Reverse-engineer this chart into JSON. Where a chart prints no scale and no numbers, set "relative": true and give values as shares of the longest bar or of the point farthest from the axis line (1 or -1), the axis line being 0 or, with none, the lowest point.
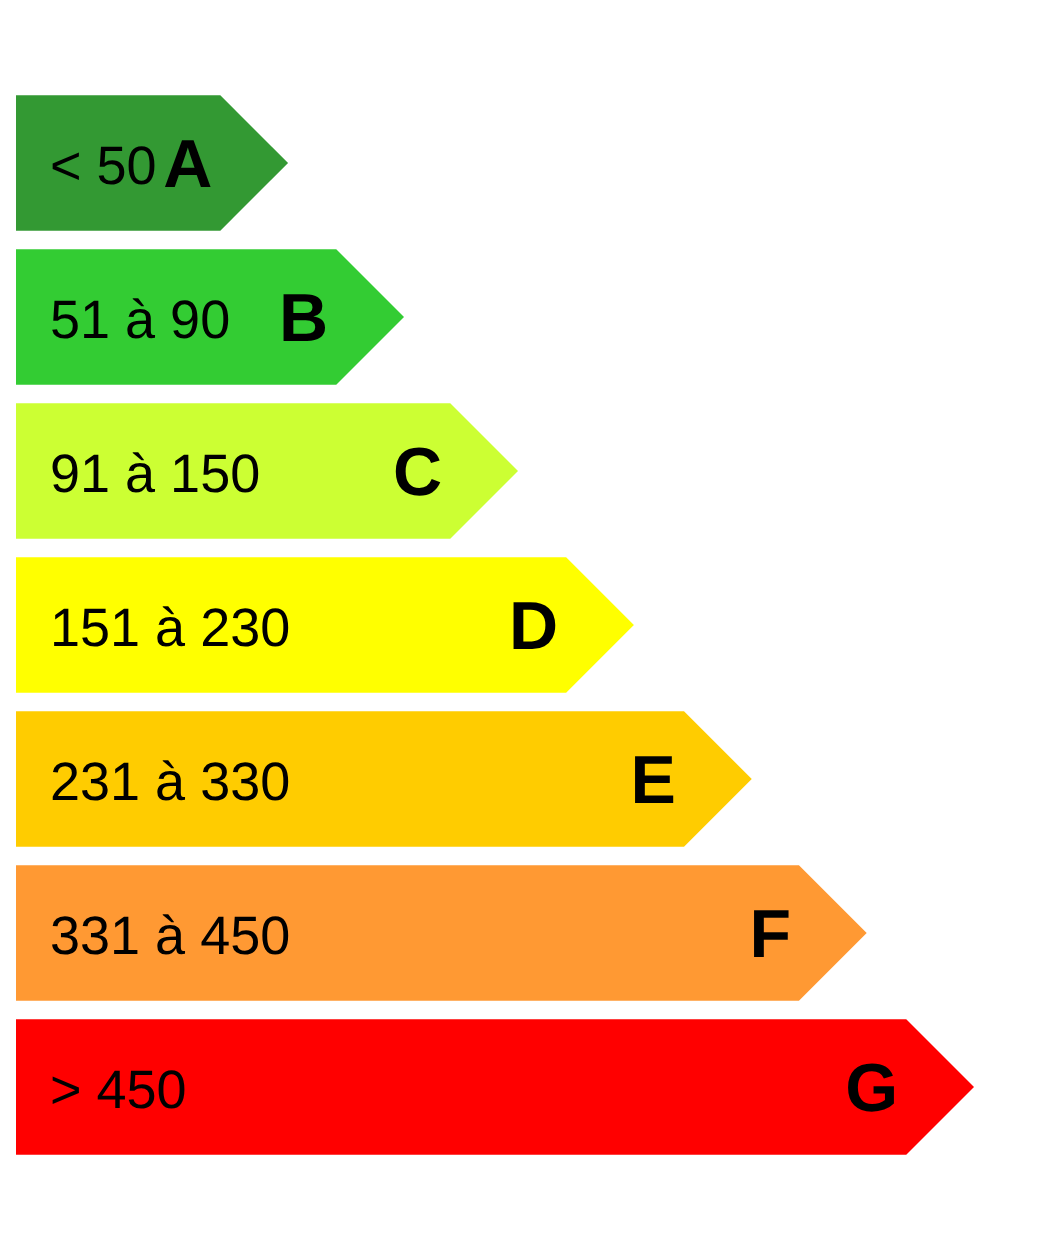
{
  "chart_data": {
    "type": "bar",
    "orientation": "horizontal",
    "relative": true,
    "categories": [
      "< 50",
      "51 à 90",
      "91 à 150",
      "151 à 230",
      "231 à 330",
      "331 à 450",
      "> 450"
    ],
    "values": [
      0.284,
      0.405,
      0.524,
      0.645,
      0.768,
      0.888,
      1
    ],
    "colors": [
      "#339933",
      "#33cc33",
      "#ccff33",
      "#ffff00",
      "#ffcc00",
      "#ff9933",
      "#ff0000"
    ],
    "annotations": [
      {
        "text": "A",
        "y": "< 50"
      },
      {
        "text": "B",
        "y": "51 à 90"
      },
      {
        "text": "C",
        "y": "91 à 150"
      },
      {
        "text": "D",
        "y": "151 à 230"
      },
      {
        "text": "E",
        "y": "231 à 330"
      },
      {
        "text": "F",
        "y": "331 à 450"
      },
      {
        "text": "G",
        "y": "> 450"
      }
    ]
  }
}
